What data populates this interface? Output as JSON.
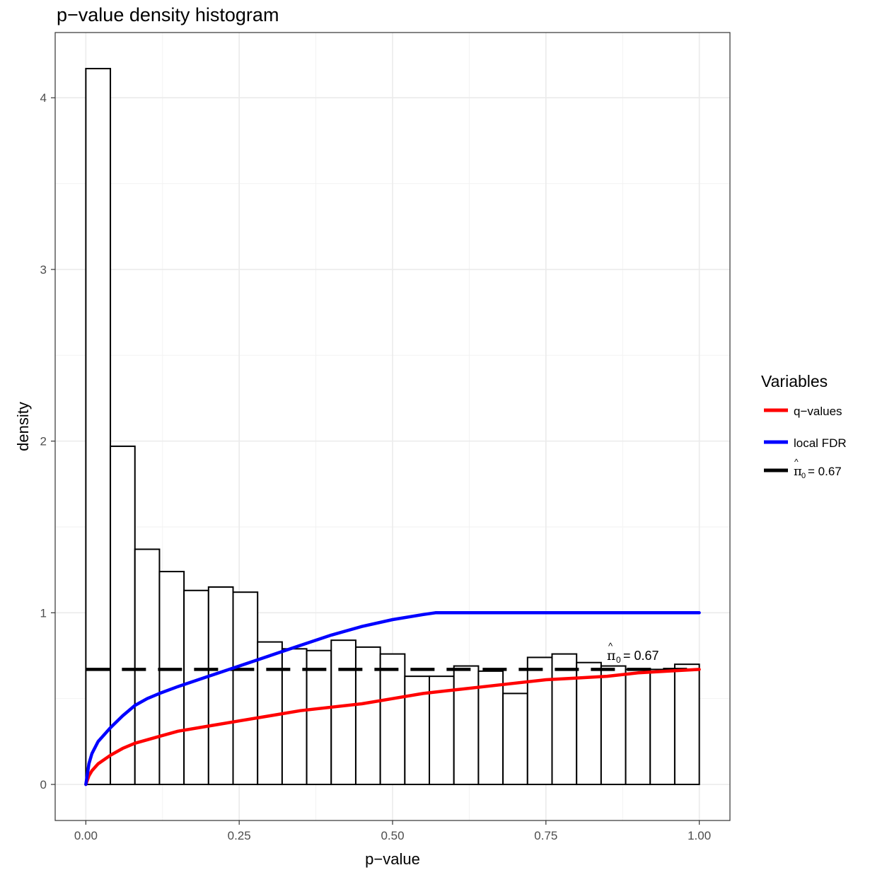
{
  "chart_data": {
    "type": "bar",
    "title": "p−value density histogram",
    "xlabel": "p−value",
    "ylabel": "density",
    "xlim": [
      -0.05,
      1.05
    ],
    "ylim": [
      -0.21,
      4.38
    ],
    "x_ticks": [
      0,
      0.25,
      0.5,
      0.75,
      1
    ],
    "x_tick_labels": [
      "0.00",
      "0.25",
      "0.50",
      "0.75",
      "1.00"
    ],
    "y_ticks": [
      0,
      1,
      2,
      3,
      4
    ],
    "y_tick_labels": [
      "0",
      "1",
      "2",
      "3",
      "4"
    ],
    "grid": true,
    "histogram": {
      "bin_width": 0.04,
      "bin_starts": [
        0,
        0.04,
        0.08,
        0.12,
        0.16,
        0.2,
        0.24,
        0.28,
        0.32,
        0.36,
        0.4,
        0.44,
        0.48,
        0.52,
        0.56,
        0.6,
        0.64,
        0.68,
        0.72,
        0.76,
        0.8,
        0.84,
        0.88,
        0.92,
        0.96
      ],
      "densities": [
        4.17,
        1.97,
        1.37,
        1.24,
        1.13,
        1.15,
        1.12,
        0.83,
        0.79,
        0.78,
        0.84,
        0.8,
        0.76,
        0.63,
        0.63,
        0.69,
        0.66,
        0.53,
        0.74,
        0.76,
        0.71,
        0.69,
        0.67,
        0.67,
        0.7
      ],
      "fill": "#ffffff",
      "stroke": "#000000"
    },
    "series": [
      {
        "name": "q−values",
        "color": "#ff0000",
        "x": [
          0,
          0.005,
          0.01,
          0.02,
          0.04,
          0.06,
          0.08,
          0.1,
          0.12,
          0.15,
          0.2,
          0.25,
          0.3,
          0.35,
          0.4,
          0.45,
          0.5,
          0.55,
          0.6,
          0.65,
          0.7,
          0.75,
          0.8,
          0.85,
          0.9,
          0.95,
          1.0
        ],
        "y": [
          0,
          0.05,
          0.08,
          0.12,
          0.17,
          0.21,
          0.24,
          0.26,
          0.28,
          0.31,
          0.34,
          0.37,
          0.4,
          0.43,
          0.45,
          0.47,
          0.5,
          0.53,
          0.55,
          0.57,
          0.59,
          0.61,
          0.62,
          0.63,
          0.65,
          0.66,
          0.67
        ]
      },
      {
        "name": "local FDR",
        "color": "#0000ff",
        "x": [
          0,
          0.005,
          0.01,
          0.02,
          0.04,
          0.06,
          0.08,
          0.1,
          0.12,
          0.15,
          0.2,
          0.25,
          0.3,
          0.35,
          0.4,
          0.45,
          0.5,
          0.55,
          0.57,
          0.6,
          0.7,
          0.8,
          0.9,
          1.0
        ],
        "y": [
          0,
          0.12,
          0.18,
          0.25,
          0.33,
          0.4,
          0.46,
          0.5,
          0.53,
          0.57,
          0.63,
          0.69,
          0.75,
          0.81,
          0.87,
          0.92,
          0.96,
          0.99,
          1.0,
          1.0,
          1.0,
          1.0,
          1.0,
          1.0
        ]
      }
    ],
    "pi0": {
      "value": 0.67,
      "color": "#000000",
      "x_range": [
        0,
        1
      ],
      "annotation_prefix": "= 0.67"
    },
    "legend": {
      "title": "Variables",
      "placement": "right",
      "items": [
        {
          "label": "q−values",
          "color": "#ff0000",
          "dashed": false
        },
        {
          "label": "local FDR",
          "color": "#0000ff",
          "dashed": false
        },
        {
          "label": "= 0.67",
          "color": "#000000",
          "dashed": true,
          "math_prefix": true
        }
      ]
    }
  }
}
